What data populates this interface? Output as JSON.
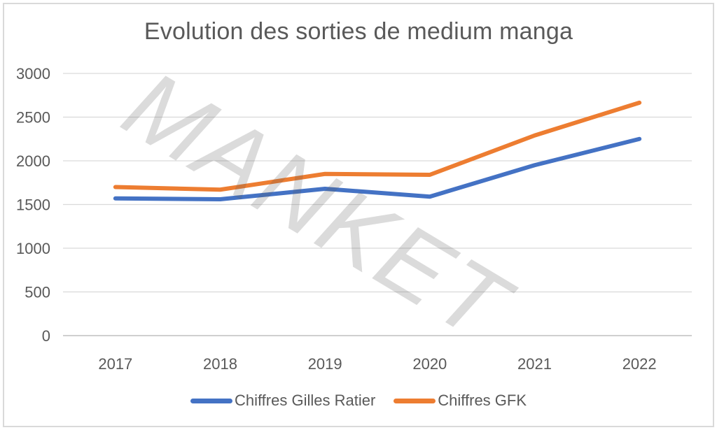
{
  "page": {
    "background": "#ffffff",
    "frame_border_color": "#d9d9d9"
  },
  "watermark": "MANKET",
  "chart_data": {
    "type": "line",
    "title": "Evolution des sorties de medium manga",
    "categories": [
      "2017",
      "2018",
      "2019",
      "2020",
      "2021",
      "2022"
    ],
    "series": [
      {
        "name": "Chiffres Gilles Ratier",
        "color": "#4472C4",
        "values": [
          1570,
          1560,
          1680,
          1590,
          1950,
          2250
        ]
      },
      {
        "name": "Chiffres GFK",
        "color": "#ED7D31",
        "values": [
          1700,
          1670,
          1850,
          1840,
          2290,
          2665
        ]
      }
    ],
    "xlabel": "",
    "ylabel": "",
    "ylim": [
      0,
      3000
    ],
    "ytick_step": 500,
    "yticks": [
      "0",
      "500",
      "1000",
      "1500",
      "2000",
      "2500",
      "3000"
    ],
    "grid": true,
    "grid_color": "#d9d9d9",
    "axis_color": "#bfbfbf",
    "label_color": "#595959",
    "legend_position": "bottom"
  }
}
